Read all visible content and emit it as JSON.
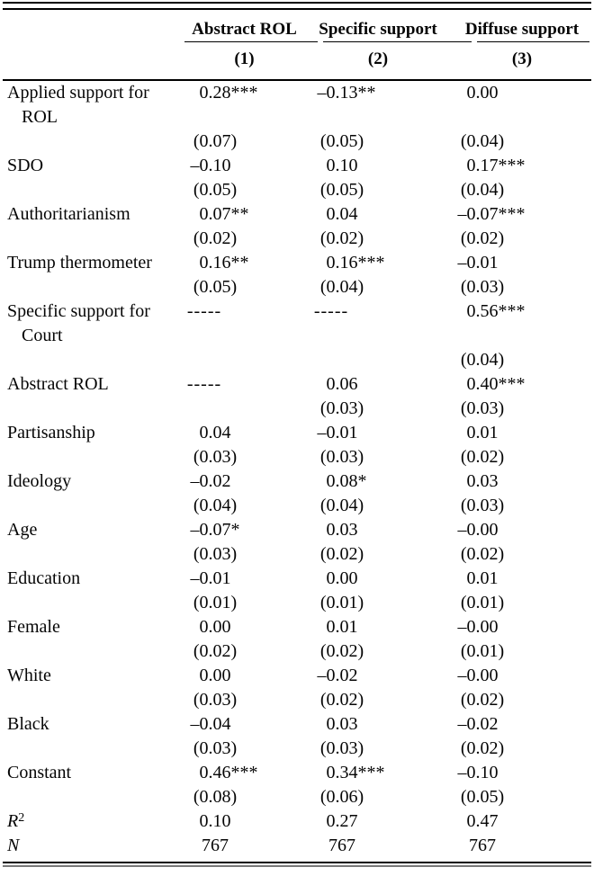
{
  "table": {
    "columns": [
      {
        "header": "Abstract ROL",
        "number": "(1)"
      },
      {
        "header": "Specific support",
        "number": "(2)"
      },
      {
        "header": "Diffuse support",
        "number": "(3)"
      }
    ],
    "rows": [
      {
        "label": "Applied support for",
        "c1": "0.28***",
        "c2": "–0.13**",
        "c3": "0.00"
      },
      {
        "label": "ROL",
        "indent": true,
        "c1": "",
        "c2": "",
        "c3": ""
      },
      {
        "label": "",
        "c1": "(0.07)",
        "c2": "(0.05)",
        "c3": "(0.04)"
      },
      {
        "label": "SDO",
        "c1": "–0.10",
        "c2": "0.10",
        "c3": "0.17***"
      },
      {
        "label": "",
        "c1": "(0.05)",
        "c2": "(0.05)",
        "c3": "(0.04)"
      },
      {
        "label": "Authoritarianism",
        "c1": "0.07**",
        "c2": "0.04",
        "c3": "–0.07***"
      },
      {
        "label": "",
        "c1": "(0.02)",
        "c2": "(0.02)",
        "c3": "(0.02)"
      },
      {
        "label": "Trump thermometer",
        "c1": "0.16**",
        "c2": "0.16***",
        "c3": "–0.01"
      },
      {
        "label": "",
        "c1": "(0.05)",
        "c2": "(0.04)",
        "c3": "(0.03)"
      },
      {
        "label": "Specific support for",
        "c1": "-----",
        "c2": "-----",
        "c3": "0.56***"
      },
      {
        "label": "Court",
        "indent": true,
        "c1": "",
        "c2": "",
        "c3": ""
      },
      {
        "label": "",
        "c1": "",
        "c2": "",
        "c3": "(0.04)"
      },
      {
        "label": "Abstract ROL",
        "c1": "-----",
        "c2": "0.06",
        "c3": "0.40***"
      },
      {
        "label": "",
        "c1": "",
        "c2": "(0.03)",
        "c3": "(0.03)"
      },
      {
        "label": "Partisanship",
        "c1": "0.04",
        "c2": "–0.01",
        "c3": "0.01"
      },
      {
        "label": "",
        "c1": "(0.03)",
        "c2": "(0.03)",
        "c3": "(0.02)"
      },
      {
        "label": "Ideology",
        "c1": "–0.02",
        "c2": "0.08*",
        "c3": "0.03"
      },
      {
        "label": "",
        "c1": "(0.04)",
        "c2": "(0.04)",
        "c3": "(0.03)"
      },
      {
        "label": "Age",
        "c1": "–0.07*",
        "c2": "0.03",
        "c3": "–0.00"
      },
      {
        "label": "",
        "c1": "(0.03)",
        "c2": "(0.02)",
        "c3": "(0.02)"
      },
      {
        "label": "Education",
        "c1": "–0.01",
        "c2": "0.00",
        "c3": "0.01"
      },
      {
        "label": "",
        "c1": "(0.01)",
        "c2": "(0.01)",
        "c3": "(0.01)"
      },
      {
        "label": "Female",
        "c1": "0.00",
        "c2": "0.01",
        "c3": "–0.00"
      },
      {
        "label": "",
        "c1": "(0.02)",
        "c2": "(0.02)",
        "c3": "(0.01)"
      },
      {
        "label": "White",
        "c1": "0.00",
        "c2": "–0.02",
        "c3": "–0.00"
      },
      {
        "label": "",
        "c1": "(0.03)",
        "c2": "(0.02)",
        "c3": "(0.02)"
      },
      {
        "label": "Black",
        "c1": "–0.04",
        "c2": "0.03",
        "c3": "–0.02"
      },
      {
        "label": "",
        "c1": "(0.03)",
        "c2": "(0.03)",
        "c3": "(0.02)"
      },
      {
        "label": "Constant",
        "c1": "0.46***",
        "c2": "0.34***",
        "c3": "–0.10"
      },
      {
        "label": "",
        "c1": "(0.08)",
        "c2": "(0.06)",
        "c3": "(0.05)"
      },
      {
        "label": "R",
        "sup": "2",
        "italic": true,
        "c1": "0.10",
        "c2": "0.27",
        "c3": "0.47"
      },
      {
        "label": "N",
        "italic": true,
        "c1": "767",
        "c2": "767",
        "c3": "767"
      }
    ]
  }
}
